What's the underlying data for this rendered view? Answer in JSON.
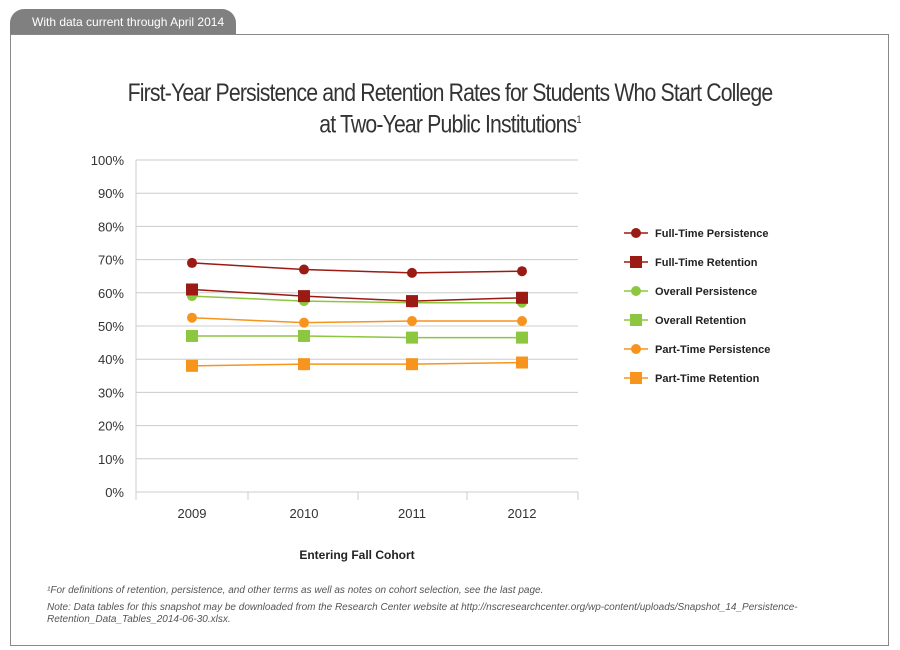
{
  "header": {
    "tab_label": "With data current through April 2014"
  },
  "chart_data": {
    "type": "line",
    "title": "First-Year Persistence and Retention Rates for Students Who Start College at Two-Year Public Institutions",
    "title_line1": "First-Year Persistence and Retention Rates for Students Who Start College",
    "title_line2": "at Two-Year Public Institutions",
    "title_footnote_mark": "1",
    "xlabel": "Entering Fall Cohort",
    "ylabel": "",
    "categories": [
      "2009",
      "2010",
      "2011",
      "2012"
    ],
    "ylim": [
      0,
      100
    ],
    "yticks": [
      "0%",
      "10%",
      "20%",
      "30%",
      "40%",
      "50%",
      "60%",
      "70%",
      "80%",
      "90%",
      "100%"
    ],
    "grid": true,
    "legend_position": "right",
    "series": [
      {
        "name": "Full-Time Persistence",
        "values": [
          69.0,
          67.0,
          66.0,
          66.5
        ],
        "color": "#9b1a14",
        "marker": "circle"
      },
      {
        "name": "Full-Time Retention",
        "values": [
          61.0,
          59.0,
          57.5,
          58.5
        ],
        "color": "#9b1a14",
        "marker": "square"
      },
      {
        "name": "Overall Persistence",
        "values": [
          59.0,
          57.5,
          57.0,
          57.0
        ],
        "color": "#8dc63f",
        "marker": "circle"
      },
      {
        "name": "Overall Retention",
        "values": [
          47.0,
          47.0,
          46.5,
          46.5
        ],
        "color": "#8dc63f",
        "marker": "square"
      },
      {
        "name": "Part-Time Persistence",
        "values": [
          52.5,
          51.0,
          51.5,
          51.5
        ],
        "color": "#f7941d",
        "marker": "circle"
      },
      {
        "name": "Part-Time Retention",
        "values": [
          38.0,
          38.5,
          38.5,
          39.0
        ],
        "color": "#f7941d",
        "marker": "square"
      }
    ]
  },
  "footnotes": {
    "note1": "¹For definitions of retention, persistence, and other terms as well as notes on cohort selection, see the last page.",
    "note2": "Note: Data tables for this snapshot may be downloaded from the Research Center website at http://nscresearchcenter.org/wp-content/uploads/Snapshot_14_Persistence-Retention_Data_Tables_2014-06-30.xlsx."
  }
}
